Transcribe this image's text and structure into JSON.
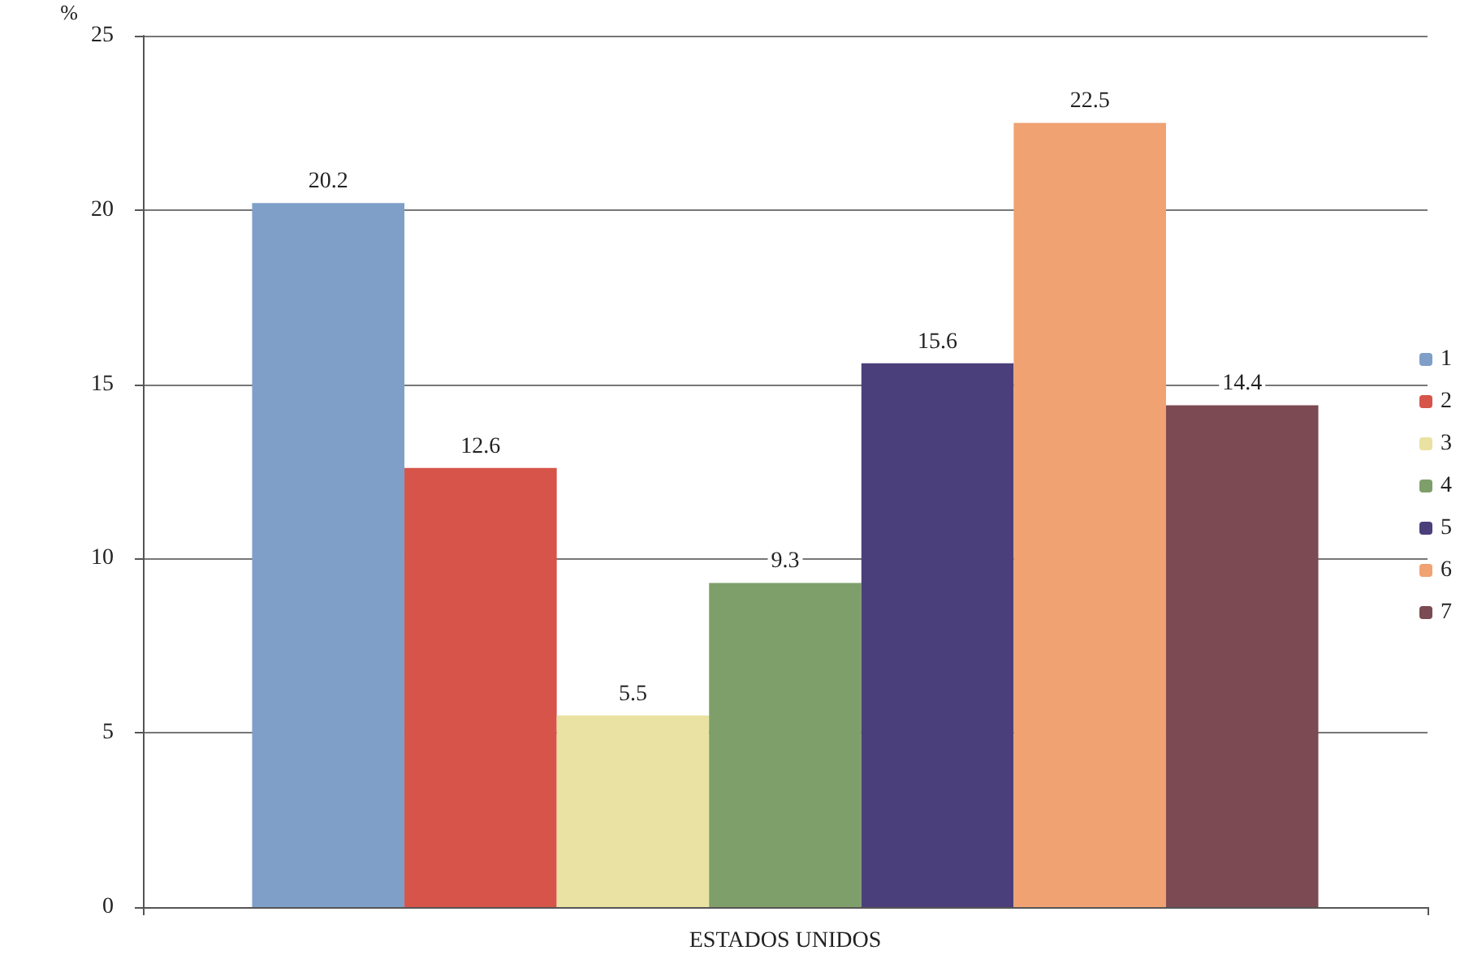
{
  "chart_data": {
    "type": "bar",
    "ylabel": "%",
    "categories": [
      "ESTADOS UNIDOS"
    ],
    "series": [
      {
        "name": "1",
        "color": "#7f9fc8",
        "values": [
          20.2
        ]
      },
      {
        "name": "2",
        "color": "#d65449",
        "values": [
          12.6
        ]
      },
      {
        "name": "3",
        "color": "#e9e2a2",
        "values": [
          5.5
        ]
      },
      {
        "name": "4",
        "color": "#7f9f6a",
        "values": [
          9.3
        ]
      },
      {
        "name": "5",
        "color": "#4b3f7b",
        "values": [
          15.6
        ]
      },
      {
        "name": "6",
        "color": "#f0a272",
        "values": [
          22.5
        ]
      },
      {
        "name": "7",
        "color": "#7c4a52",
        "values": [
          14.4
        ]
      }
    ],
    "ylim": [
      0,
      25
    ],
    "yticks": [
      0,
      5,
      10,
      15,
      20,
      25
    ],
    "grid": "y",
    "legend": "right",
    "data_labels": true
  }
}
